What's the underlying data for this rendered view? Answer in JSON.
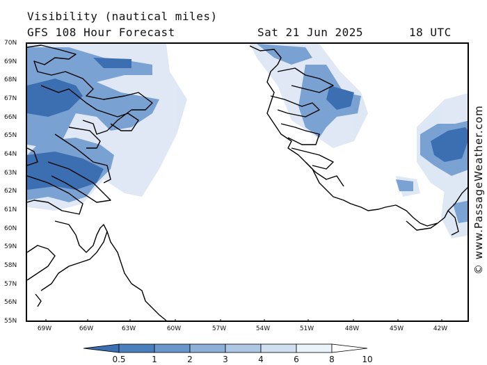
{
  "header": {
    "title": "Visibility (nautical miles)",
    "subtitle": "GFS 108 Hour Forecast",
    "date": "Sat 21 Jun 2025",
    "time": "18 UTC"
  },
  "credit": "© www.PassageWeather.com",
  "map": {
    "lat_labels": [
      "70N",
      "69N",
      "68N",
      "67N",
      "66N",
      "65N",
      "64N",
      "63N",
      "62N",
      "61N",
      "60N",
      "59N",
      "58N",
      "57N",
      "56N",
      "55N"
    ],
    "lon_labels": [
      "69W",
      "66W",
      "63W",
      "60W",
      "57W",
      "54W",
      "51W",
      "48W",
      "45W",
      "42W"
    ],
    "lat_range": [
      55,
      70
    ],
    "lon_range": [
      -69.6,
      -40.4
    ],
    "coastline_color": "#000000"
  },
  "legend": {
    "labels": [
      "0.5",
      "1",
      "2",
      "3",
      "4",
      "6",
      "8",
      "10"
    ],
    "colors": [
      "#3b6fb2",
      "#4a7fbd",
      "#6a97cb",
      "#8cb0d8",
      "#adc7e4",
      "#cfdff0",
      "#eaf2fa",
      "#ffffff"
    ]
  }
}
